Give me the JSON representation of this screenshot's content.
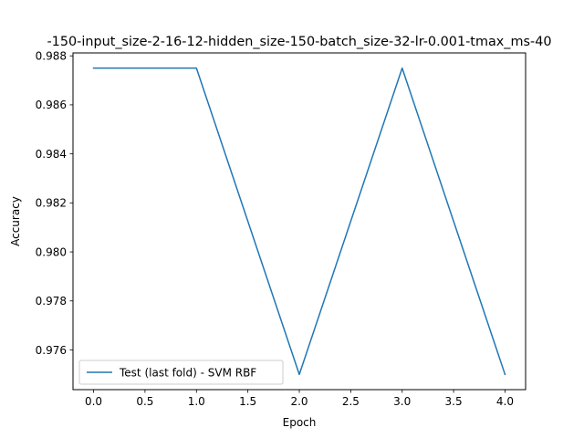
{
  "chart_data": {
    "type": "line",
    "title": "-150-input_size-2-16-12-hidden_size-150-batch_size-32-lr-0.001-tmax_ms-40",
    "xlabel": "Epoch",
    "ylabel": "Accuracy",
    "x": [
      0,
      1,
      2,
      3,
      4
    ],
    "series": [
      {
        "name": "Test (last fold) - SVM RBF",
        "color": "#1f77b4",
        "values": [
          0.9875,
          0.9875,
          0.975,
          0.9875,
          0.975
        ]
      }
    ],
    "xlim": [
      -0.2,
      4.2
    ],
    "ylim": [
      0.97438,
      0.98812
    ],
    "xticks": [
      0.0,
      0.5,
      1.0,
      1.5,
      2.0,
      2.5,
      3.0,
      3.5,
      4.0
    ],
    "xtick_labels": [
      "0.0",
      "0.5",
      "1.0",
      "1.5",
      "2.0",
      "2.5",
      "3.0",
      "3.5",
      "4.0"
    ],
    "yticks": [
      0.976,
      0.978,
      0.98,
      0.982,
      0.984,
      0.986,
      0.988
    ],
    "ytick_labels": [
      "0.976",
      "0.978",
      "0.980",
      "0.982",
      "0.984",
      "0.986",
      "0.988"
    ],
    "grid": false,
    "legend_position": "lower-left"
  }
}
